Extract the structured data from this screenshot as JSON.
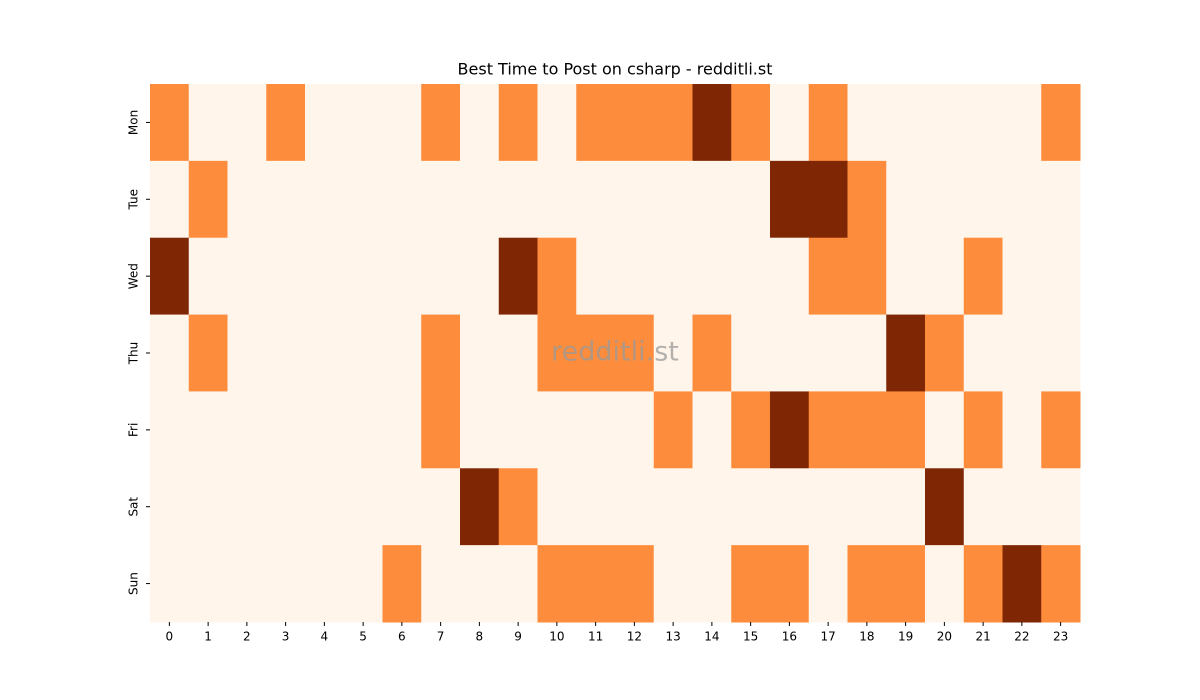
{
  "chart_data": {
    "type": "heatmap",
    "title": "Best Time to Post on csharp - redditli.st",
    "watermark": "redditli.st",
    "x": [
      0,
      1,
      2,
      3,
      4,
      5,
      6,
      7,
      8,
      9,
      10,
      11,
      12,
      13,
      14,
      15,
      16,
      17,
      18,
      19,
      20,
      21,
      22,
      23
    ],
    "categories": [
      "Mon",
      "Tue",
      "Wed",
      "Thu",
      "Fri",
      "Sat",
      "Sun"
    ],
    "values": [
      [
        1,
        0,
        0,
        1,
        0,
        0,
        0,
        1,
        0,
        1,
        0,
        1,
        1,
        1,
        2,
        1,
        0,
        1,
        0,
        0,
        0,
        0,
        0,
        1
      ],
      [
        0,
        1,
        0,
        0,
        0,
        0,
        0,
        0,
        0,
        0,
        0,
        0,
        0,
        0,
        0,
        0,
        2,
        2,
        1,
        0,
        0,
        0,
        0,
        0
      ],
      [
        2,
        0,
        0,
        0,
        0,
        0,
        0,
        0,
        0,
        2,
        1,
        0,
        0,
        0,
        0,
        0,
        0,
        1,
        1,
        0,
        0,
        1,
        0,
        0
      ],
      [
        0,
        1,
        0,
        0,
        0,
        0,
        0,
        1,
        0,
        0,
        1,
        1,
        1,
        0,
        1,
        0,
        0,
        0,
        0,
        2,
        1,
        0,
        0,
        0
      ],
      [
        0,
        0,
        0,
        0,
        0,
        0,
        0,
        1,
        0,
        0,
        0,
        0,
        0,
        1,
        0,
        1,
        2,
        1,
        1,
        1,
        0,
        1,
        0,
        1
      ],
      [
        0,
        0,
        0,
        0,
        0,
        0,
        0,
        0,
        2,
        1,
        0,
        0,
        0,
        0,
        0,
        0,
        0,
        0,
        0,
        0,
        2,
        0,
        0,
        0
      ],
      [
        0,
        0,
        0,
        0,
        0,
        0,
        1,
        0,
        0,
        0,
        1,
        1,
        1,
        0,
        0,
        1,
        1,
        0,
        1,
        1,
        0,
        1,
        2,
        1
      ]
    ],
    "vlim": [
      0,
      2
    ],
    "colors": [
      "#fff5eb",
      "#fd8d3c",
      "#7f2704"
    ]
  }
}
